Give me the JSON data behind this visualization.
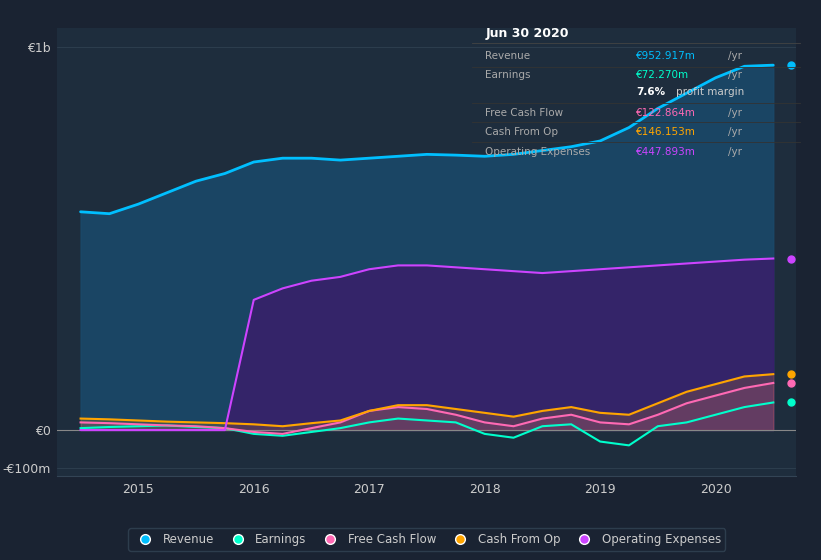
{
  "bg_color": "#1a2332",
  "plot_bg_color": "#1e2d3d",
  "title": "Jun 30 2020",
  "tooltip_bg": "#000000",
  "years": [
    2014.5,
    2014.75,
    2015.0,
    2015.25,
    2015.5,
    2015.75,
    2016.0,
    2016.25,
    2016.5,
    2016.75,
    2017.0,
    2017.25,
    2017.5,
    2017.75,
    2018.0,
    2018.25,
    2018.5,
    2018.75,
    2019.0,
    2019.25,
    2019.5,
    2019.75,
    2020.0,
    2020.25,
    2020.5
  ],
  "revenue": [
    570,
    565,
    590,
    620,
    650,
    670,
    700,
    710,
    710,
    705,
    710,
    715,
    720,
    718,
    715,
    720,
    730,
    740,
    755,
    790,
    840,
    880,
    920,
    950,
    953
  ],
  "earnings": [
    5,
    8,
    10,
    12,
    8,
    5,
    -10,
    -15,
    -5,
    5,
    20,
    30,
    25,
    20,
    -10,
    -20,
    10,
    15,
    -30,
    -40,
    10,
    20,
    40,
    60,
    72
  ],
  "free_cash_flow": [
    20,
    18,
    15,
    12,
    10,
    5,
    -5,
    -10,
    5,
    20,
    50,
    60,
    55,
    40,
    20,
    10,
    30,
    40,
    20,
    15,
    40,
    70,
    90,
    110,
    123
  ],
  "cash_from_op": [
    30,
    28,
    25,
    22,
    20,
    18,
    15,
    10,
    18,
    25,
    50,
    65,
    65,
    55,
    45,
    35,
    50,
    60,
    45,
    40,
    70,
    100,
    120,
    140,
    146
  ],
  "operating_expenses": [
    0,
    0,
    0,
    0,
    0,
    0,
    340,
    370,
    390,
    400,
    420,
    430,
    430,
    425,
    420,
    415,
    410,
    415,
    420,
    425,
    430,
    435,
    440,
    445,
    448
  ],
  "revenue_color": "#00bfff",
  "earnings_color": "#00ffcc",
  "free_cash_flow_color": "#ff69b4",
  "cash_from_op_color": "#ffa500",
  "operating_expenses_color": "#cc44ff",
  "revenue_fill_color": "#1a4a6b",
  "operating_expenses_fill_color": "#3d1a6b",
  "ylim_min": -120,
  "ylim_max": 1050,
  "xlim_min": 2014.3,
  "xlim_max": 2020.7,
  "ytick_labels": [
    "€1b",
    "€0",
    "-€100m"
  ],
  "ytick_values": [
    1000,
    0,
    -100
  ],
  "legend_items": [
    {
      "label": "Revenue",
      "color": "#00bfff"
    },
    {
      "label": "Earnings",
      "color": "#00ffcc"
    },
    {
      "label": "Free Cash Flow",
      "color": "#ff69b4"
    },
    {
      "label": "Cash From Op",
      "color": "#ffa500"
    },
    {
      "label": "Operating Expenses",
      "color": "#cc44ff"
    }
  ],
  "tooltip": {
    "title": "Jun 30 2020",
    "rows": [
      {
        "label": "Revenue",
        "value": "€952.917m /yr",
        "value_color": "#00bfff"
      },
      {
        "label": "Earnings",
        "value": "€72.270m /yr",
        "value_color": "#00ffcc"
      },
      {
        "label": "profit_margin",
        "value": "7.6% profit margin",
        "value_color": "#ffffff"
      },
      {
        "label": "Free Cash Flow",
        "value": "€122.864m /yr",
        "value_color": "#ff69b4"
      },
      {
        "label": "Cash From Op",
        "value": "€146.153m /yr",
        "value_color": "#ffa500"
      },
      {
        "label": "Operating Expenses",
        "value": "€447.893m /yr",
        "value_color": "#cc44ff"
      }
    ]
  }
}
